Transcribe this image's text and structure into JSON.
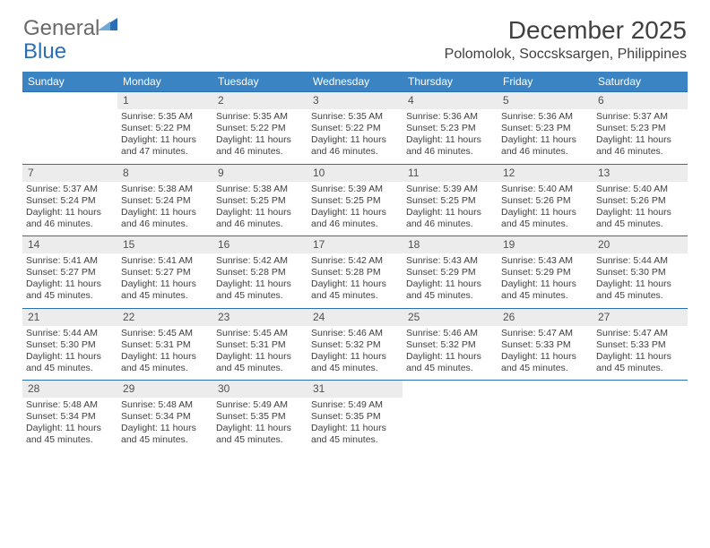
{
  "logo": {
    "text1": "General",
    "text2": "Blue",
    "tri_color": "#2a6fb5"
  },
  "title": "December 2025",
  "location": "Polomolok, Soccsksargen, Philippines",
  "header_bg": "#3b84c4",
  "daynum_bg": "#ececec",
  "border_color": "#2a6fb5",
  "weekdays": [
    "Sunday",
    "Monday",
    "Tuesday",
    "Wednesday",
    "Thursday",
    "Friday",
    "Saturday"
  ],
  "weeks": [
    {
      "nums": [
        "",
        "1",
        "2",
        "3",
        "4",
        "5",
        "6"
      ],
      "cells": [
        null,
        {
          "sunrise": "5:35 AM",
          "sunset": "5:22 PM",
          "daylight": "11 hours and 47 minutes."
        },
        {
          "sunrise": "5:35 AM",
          "sunset": "5:22 PM",
          "daylight": "11 hours and 46 minutes."
        },
        {
          "sunrise": "5:35 AM",
          "sunset": "5:22 PM",
          "daylight": "11 hours and 46 minutes."
        },
        {
          "sunrise": "5:36 AM",
          "sunset": "5:23 PM",
          "daylight": "11 hours and 46 minutes."
        },
        {
          "sunrise": "5:36 AM",
          "sunset": "5:23 PM",
          "daylight": "11 hours and 46 minutes."
        },
        {
          "sunrise": "5:37 AM",
          "sunset": "5:23 PM",
          "daylight": "11 hours and 46 minutes."
        }
      ]
    },
    {
      "nums": [
        "7",
        "8",
        "9",
        "10",
        "11",
        "12",
        "13"
      ],
      "cells": [
        {
          "sunrise": "5:37 AM",
          "sunset": "5:24 PM",
          "daylight": "11 hours and 46 minutes."
        },
        {
          "sunrise": "5:38 AM",
          "sunset": "5:24 PM",
          "daylight": "11 hours and 46 minutes."
        },
        {
          "sunrise": "5:38 AM",
          "sunset": "5:25 PM",
          "daylight": "11 hours and 46 minutes."
        },
        {
          "sunrise": "5:39 AM",
          "sunset": "5:25 PM",
          "daylight": "11 hours and 46 minutes."
        },
        {
          "sunrise": "5:39 AM",
          "sunset": "5:25 PM",
          "daylight": "11 hours and 46 minutes."
        },
        {
          "sunrise": "5:40 AM",
          "sunset": "5:26 PM",
          "daylight": "11 hours and 45 minutes."
        },
        {
          "sunrise": "5:40 AM",
          "sunset": "5:26 PM",
          "daylight": "11 hours and 45 minutes."
        }
      ]
    },
    {
      "nums": [
        "14",
        "15",
        "16",
        "17",
        "18",
        "19",
        "20"
      ],
      "cells": [
        {
          "sunrise": "5:41 AM",
          "sunset": "5:27 PM",
          "daylight": "11 hours and 45 minutes."
        },
        {
          "sunrise": "5:41 AM",
          "sunset": "5:27 PM",
          "daylight": "11 hours and 45 minutes."
        },
        {
          "sunrise": "5:42 AM",
          "sunset": "5:28 PM",
          "daylight": "11 hours and 45 minutes."
        },
        {
          "sunrise": "5:42 AM",
          "sunset": "5:28 PM",
          "daylight": "11 hours and 45 minutes."
        },
        {
          "sunrise": "5:43 AM",
          "sunset": "5:29 PM",
          "daylight": "11 hours and 45 minutes."
        },
        {
          "sunrise": "5:43 AM",
          "sunset": "5:29 PM",
          "daylight": "11 hours and 45 minutes."
        },
        {
          "sunrise": "5:44 AM",
          "sunset": "5:30 PM",
          "daylight": "11 hours and 45 minutes."
        }
      ]
    },
    {
      "nums": [
        "21",
        "22",
        "23",
        "24",
        "25",
        "26",
        "27"
      ],
      "cells": [
        {
          "sunrise": "5:44 AM",
          "sunset": "5:30 PM",
          "daylight": "11 hours and 45 minutes."
        },
        {
          "sunrise": "5:45 AM",
          "sunset": "5:31 PM",
          "daylight": "11 hours and 45 minutes."
        },
        {
          "sunrise": "5:45 AM",
          "sunset": "5:31 PM",
          "daylight": "11 hours and 45 minutes."
        },
        {
          "sunrise": "5:46 AM",
          "sunset": "5:32 PM",
          "daylight": "11 hours and 45 minutes."
        },
        {
          "sunrise": "5:46 AM",
          "sunset": "5:32 PM",
          "daylight": "11 hours and 45 minutes."
        },
        {
          "sunrise": "5:47 AM",
          "sunset": "5:33 PM",
          "daylight": "11 hours and 45 minutes."
        },
        {
          "sunrise": "5:47 AM",
          "sunset": "5:33 PM",
          "daylight": "11 hours and 45 minutes."
        }
      ]
    },
    {
      "nums": [
        "28",
        "29",
        "30",
        "31",
        "",
        "",
        ""
      ],
      "cells": [
        {
          "sunrise": "5:48 AM",
          "sunset": "5:34 PM",
          "daylight": "11 hours and 45 minutes."
        },
        {
          "sunrise": "5:48 AM",
          "sunset": "5:34 PM",
          "daylight": "11 hours and 45 minutes."
        },
        {
          "sunrise": "5:49 AM",
          "sunset": "5:35 PM",
          "daylight": "11 hours and 45 minutes."
        },
        {
          "sunrise": "5:49 AM",
          "sunset": "5:35 PM",
          "daylight": "11 hours and 45 minutes."
        },
        null,
        null,
        null
      ]
    }
  ]
}
